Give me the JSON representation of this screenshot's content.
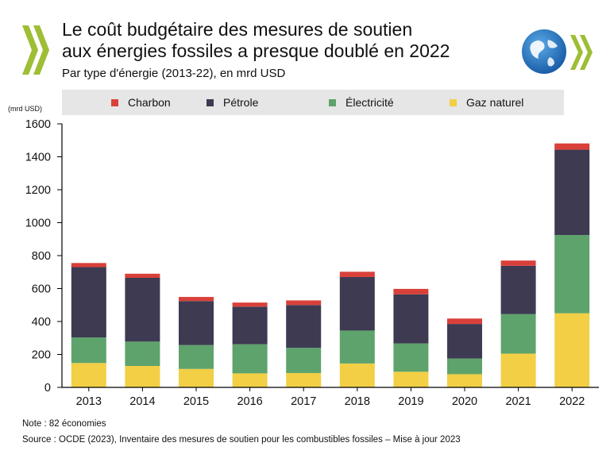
{
  "header": {
    "title_line1": "Le coût budgétaire des mesures de soutien",
    "title_line2": "aux énergies fossiles a presque doublé en 2022",
    "subtitle": "Par type d'énergie (2013-22), en mrd USD"
  },
  "logos": {
    "left": "oecd-chevrons-logo",
    "right": "oecd-globe-logo"
  },
  "colors": {
    "charbon": "#d9403a",
    "petrole": "#3d3a52",
    "electricite": "#5ea36b",
    "gaz": "#f2cf45",
    "chevron_green": "#9ebe35",
    "chevron_dark": "#6e6e6e"
  },
  "chart_data": {
    "type": "bar",
    "stacked": true,
    "unit_label": "(mrd USD)",
    "categories": [
      "2013",
      "2014",
      "2015",
      "2016",
      "2017",
      "2018",
      "2019",
      "2020",
      "2021",
      "2022"
    ],
    "series": [
      {
        "name": "Gaz naturel",
        "color": "#f2cf45",
        "values": [
          148,
          130,
          112,
          85,
          87,
          145,
          95,
          80,
          205,
          450
        ]
      },
      {
        "name": "Électricité",
        "color": "#5ea36b",
        "values": [
          155,
          148,
          145,
          177,
          153,
          200,
          172,
          95,
          240,
          475
        ]
      },
      {
        "name": "Pétrole",
        "color": "#3d3a52",
        "values": [
          427,
          387,
          267,
          228,
          260,
          325,
          298,
          210,
          293,
          518
        ]
      },
      {
        "name": "Charbon",
        "color": "#d9403a",
        "values": [
          25,
          25,
          25,
          25,
          28,
          32,
          33,
          33,
          32,
          38
        ]
      }
    ],
    "legend_order": [
      "Charbon",
      "Pétrole",
      "Électricité",
      "Gaz naturel"
    ],
    "ylim": [
      0,
      1600
    ],
    "yticks": [
      0,
      200,
      400,
      600,
      800,
      1000,
      1200,
      1400,
      1600
    ],
    "legend_position": "top",
    "grid": false
  },
  "footer": {
    "note": "Note : 82 économies",
    "source": "Source : OCDE (2023), Inventaire des mesures de soutien pour les combustibles fossiles – Mise à jour 2023"
  }
}
